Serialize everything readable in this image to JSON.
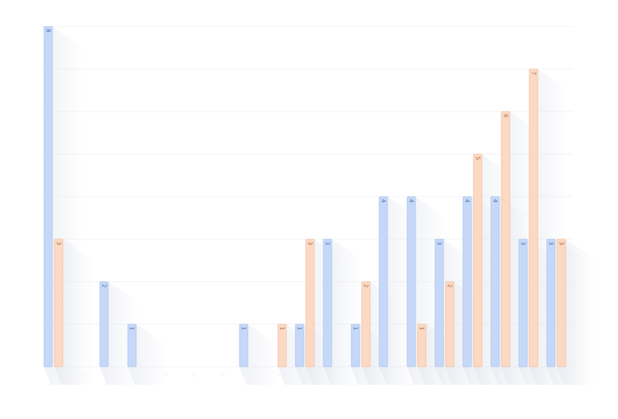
{
  "chart_data": {
    "type": "bar",
    "title": "",
    "xlabel": "",
    "ylabel": "",
    "ylim": [
      0,
      8
    ],
    "grid": true,
    "legend": "none",
    "categories": [
      "1",
      "2",
      "3",
      "4",
      "5",
      "6",
      "7",
      "8",
      "9",
      "10",
      "11",
      "12",
      "13",
      "14",
      "15",
      "16",
      "17",
      "18",
      "19"
    ],
    "series": [
      {
        "color": "#c6d8f8",
        "stroke": "#aac4f0",
        "label_color": "#4a6fa8",
        "values": [
          8,
          null,
          2,
          1,
          null,
          null,
          null,
          1,
          null,
          1,
          3,
          1,
          4,
          4,
          3,
          4,
          4,
          3,
          3
        ]
      },
      {
        "color": "#fcd9c3",
        "stroke": "#f1bea0",
        "label_color": "#a8653e",
        "values": [
          3,
          null,
          null,
          null,
          null,
          null,
          null,
          null,
          1,
          3,
          null,
          2,
          null,
          1,
          2,
          5,
          6,
          7,
          3
        ]
      }
    ]
  }
}
